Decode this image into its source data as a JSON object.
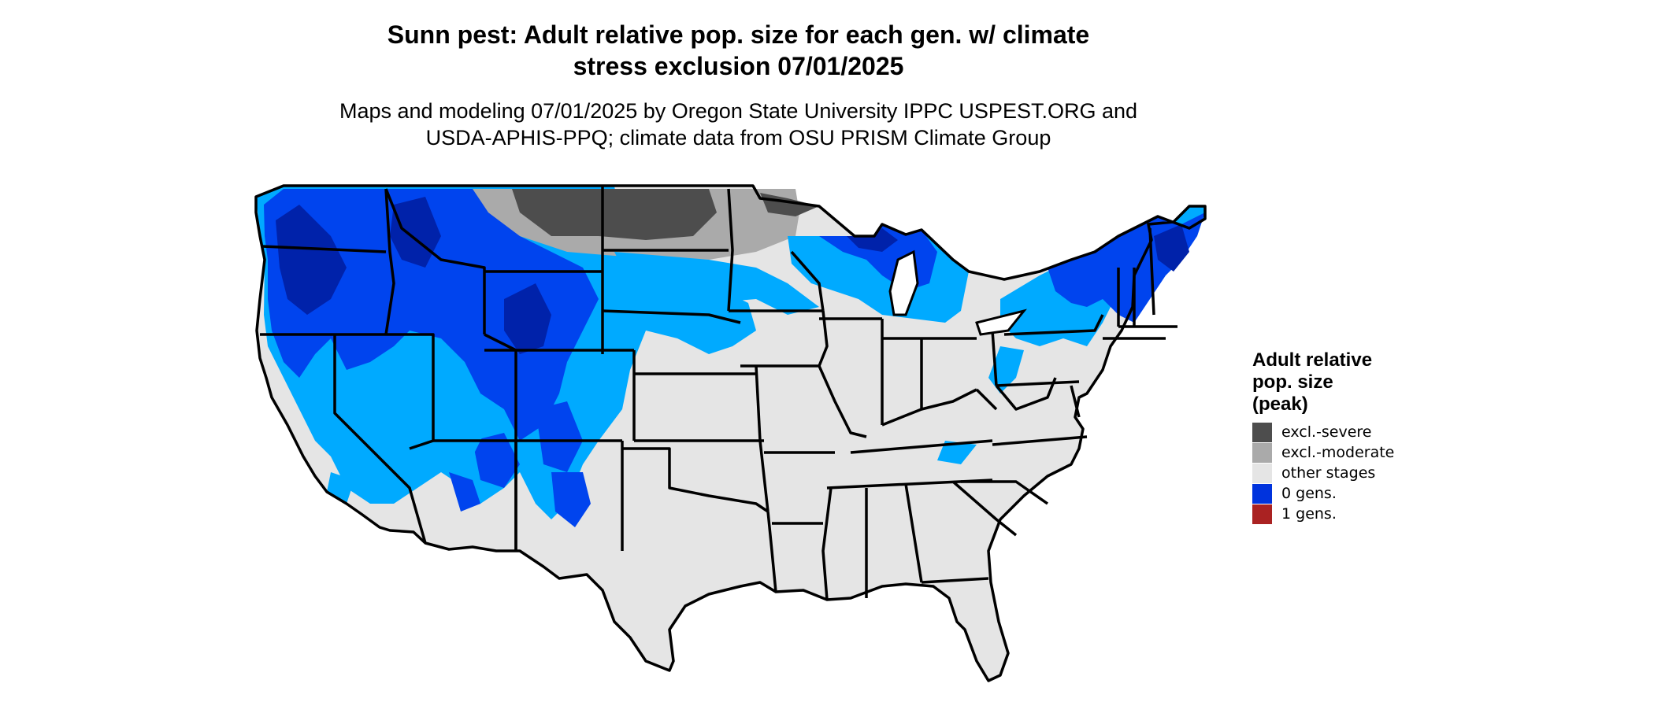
{
  "title_line1": "Sunn pest: Adult relative pop. size for each gen. w/ climate",
  "title_line2": "stress exclusion 07/01/2025",
  "subtitle_line1": "Maps and modeling 07/01/2025 by Oregon State University IPPC USPEST.ORG and",
  "subtitle_line2": "USDA-APHIS-PPQ; climate data from OSU PRISM Climate Group",
  "legend": {
    "title_lines": [
      "Adult relative",
      "pop. size",
      "(peak)"
    ],
    "items": [
      {
        "label": "excl.-severe",
        "color": "#4d4d4d"
      },
      {
        "label": "excl.-moderate",
        "color": "#aaaaaa"
      },
      {
        "label": "other stages",
        "color": "#e5e5e5"
      },
      {
        "label": "0 gens.",
        "color": "#0033dd"
      },
      {
        "label": "1 gens.",
        "color": "#aa2222"
      }
    ]
  },
  "map_colors": {
    "background": "#e5e5e5",
    "bright_blue": "#00aaff",
    "blue": "#0044ee",
    "dark_blue": "#0022aa",
    "border": "#000000"
  }
}
